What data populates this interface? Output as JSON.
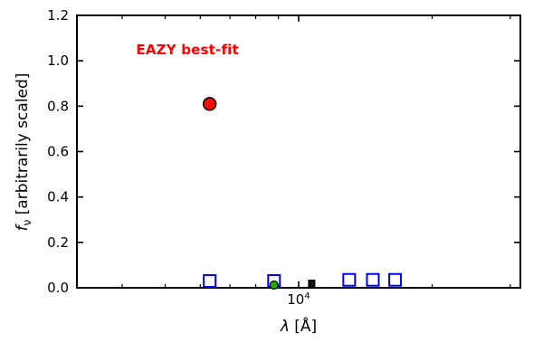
{
  "labels": {
    "annotation": "EAZY best-fit",
    "ylabel_f": "f",
    "ylabel_sub": "ν",
    "ylabel_rest": " [arbitrarily scaled]",
    "xlabel_lambda": "λ",
    "xlabel_rest": " [Å]",
    "xtick_base": "10",
    "xtick_exp": "4"
  },
  "chart_data": {
    "type": "scatter",
    "title": "",
    "xlabel": "λ [Å]",
    "ylabel": "f_ν [arbitrarily scaled]",
    "x_scale": "log",
    "xlim": [
      3162,
      31623
    ],
    "ylim": [
      0,
      1.2
    ],
    "y_ticks": [
      0.0,
      0.2,
      0.4,
      0.6,
      0.8,
      1.0,
      1.2
    ],
    "x_major_ticks": [
      10000
    ],
    "grid": false,
    "legend": "none",
    "annotation": {
      "text": "EAZY best-fit",
      "color": "#ff0000",
      "x": 4300,
      "y": 1.05
    },
    "series": [
      {
        "name": "observed-photometry-squares",
        "marker": "square",
        "fill": "none",
        "edge": "#0000ee",
        "size": 13,
        "stroke_width": 2,
        "points": [
          [
            6300,
            0.03
          ],
          [
            8800,
            0.03
          ],
          [
            13000,
            0.035
          ],
          [
            14700,
            0.035
          ],
          [
            16500,
            0.035
          ]
        ]
      },
      {
        "name": "dark-square-point",
        "marker": "square",
        "fill": "#111111",
        "edge": "#000000",
        "size": 7,
        "stroke_width": 1,
        "points": [
          [
            10700,
            0.02
          ]
        ]
      },
      {
        "name": "best-fit-model-point",
        "marker": "circle",
        "fill": "#ee1100",
        "edge": "#000000",
        "size": 14,
        "stroke_width": 1.5,
        "points": [
          [
            6300,
            0.81
          ]
        ]
      },
      {
        "name": "observed-flux-point",
        "marker": "circle",
        "fill": "#22aa00",
        "edge": "#000000",
        "size": 9,
        "stroke_width": 1.2,
        "points": [
          [
            8800,
            0.012
          ]
        ]
      }
    ]
  }
}
